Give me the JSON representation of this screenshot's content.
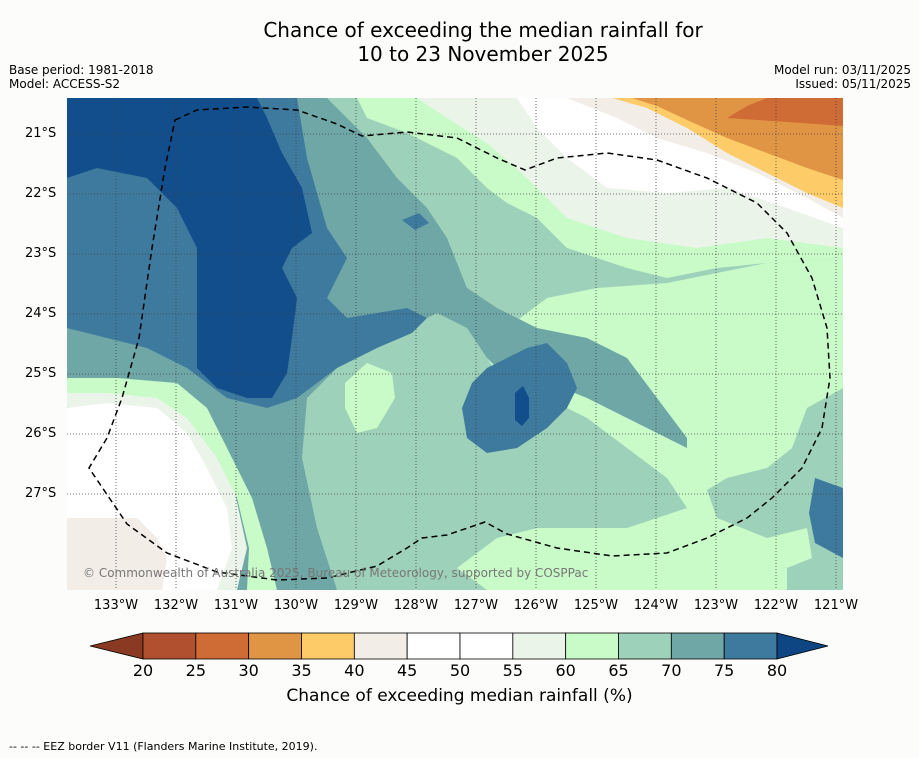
{
  "title_line1": "Chance of exceeding the median rainfall for",
  "title_line2": "10 to 23 November 2025",
  "base_period": "Base period: 1981-2018",
  "model": "Model: ACCESS-S2",
  "model_run": "Model run: 03/11/2025",
  "issued": "Issued: 05/11/2025",
  "lat_labels": [
    "21°S",
    "22°S",
    "23°S",
    "24°S",
    "25°S",
    "26°S",
    "27°S"
  ],
  "lon_labels": [
    "133°W",
    "132°W",
    "131°W",
    "130°W",
    "129°W",
    "128°W",
    "127°W",
    "126°W",
    "125°W",
    "124°W",
    "123°W",
    "122°W",
    "121°W"
  ],
  "copyright": "© Commonwealth of Australia 2025, Bureau of Meteorology, supported by COSPPac",
  "colorbar": {
    "ticks": [
      "20",
      "25",
      "30",
      "35",
      "40",
      "45",
      "50",
      "55",
      "60",
      "65",
      "70",
      "75",
      "80"
    ],
    "colors": [
      "#b0502e",
      "#cf6b35",
      "#e09545",
      "#fdcc68",
      "#f2ede7",
      "#ffffff",
      "#ffffff",
      "#ebf4e9",
      "#c8fbc8",
      "#9ed1ba",
      "#6ea7a6",
      "#3e7a9e",
      "#124e8c"
    ],
    "under_color": "#8a3a22",
    "over_color": "#0d4683",
    "label": "Chance of exceeding median rainfall (%)"
  },
  "footer": "--  --  -- EEZ border V11 (Flanders Marine Institute, 2019)."
}
